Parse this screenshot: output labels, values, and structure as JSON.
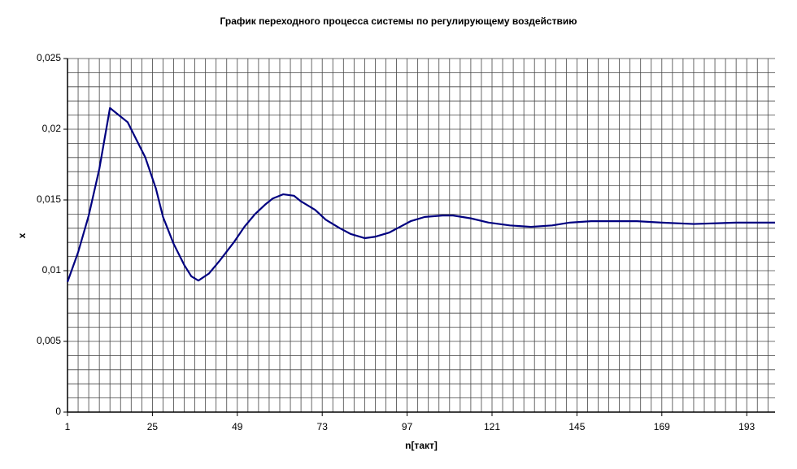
{
  "chart_data": {
    "type": "line",
    "title": "График переходного процесса системы по регулирующему воздействию",
    "xlabel": "n[такт]",
    "ylabel": "x",
    "x": [
      1,
      4,
      7,
      10,
      13,
      15,
      18,
      20,
      23,
      26,
      28,
      31,
      34,
      36,
      38,
      41,
      44,
      48,
      51,
      54,
      57,
      59,
      62,
      65,
      67,
      71,
      74,
      78,
      81,
      85,
      88,
      92,
      95,
      98,
      102,
      107,
      110,
      115,
      120,
      126,
      132,
      138,
      143,
      149,
      155,
      162,
      169,
      178,
      190,
      201
    ],
    "series": [
      {
        "color": "#000080",
        "values": [
          0.0092,
          0.0113,
          0.0139,
          0.0172,
          0.0215,
          0.0211,
          0.0205,
          0.0195,
          0.018,
          0.0158,
          0.0138,
          0.0119,
          0.0104,
          0.0096,
          0.0093,
          0.0098,
          0.0107,
          0.012,
          0.0131,
          0.014,
          0.0147,
          0.0151,
          0.0154,
          0.0153,
          0.0149,
          0.0143,
          0.0136,
          0.013,
          0.0126,
          0.0123,
          0.0124,
          0.0127,
          0.0131,
          0.0135,
          0.0138,
          0.0139,
          0.0139,
          0.0137,
          0.0134,
          0.0132,
          0.0131,
          0.0132,
          0.0134,
          0.0135,
          0.0135,
          0.0135,
          0.0134,
          0.0133,
          0.0134,
          0.0134
        ]
      }
    ],
    "xlim": [
      1,
      201
    ],
    "xticks": [
      1,
      25,
      49,
      73,
      97,
      121,
      145,
      169,
      193
    ],
    "ylim": [
      0,
      0.025
    ],
    "yticks": [
      0,
      {
        "value": 0.005,
        "label": "0,005"
      },
      {
        "value": 0.01,
        "label": "0,01"
      },
      {
        "value": 0.015,
        "label": "0,015"
      },
      {
        "value": 0.02,
        "label": "0,02"
      },
      {
        "value": 0.025,
        "label": "0,025"
      }
    ],
    "xgrid": [
      1,
      4,
      7,
      10,
      13,
      16,
      19,
      22,
      25,
      28,
      31,
      34,
      37,
      40,
      43,
      46,
      49,
      52,
      55,
      58,
      61,
      64,
      67,
      70,
      73,
      76,
      79,
      82,
      85,
      88,
      91,
      94,
      97,
      100,
      103,
      106,
      109,
      112,
      115,
      118,
      121,
      124,
      127,
      130,
      133,
      136,
      139,
      142,
      145,
      148,
      151,
      154,
      157,
      160,
      163,
      166,
      169,
      172,
      175,
      178,
      181,
      184,
      187,
      190,
      193,
      196,
      199
    ],
    "ygrid": [
      0.001,
      0.002,
      0.003,
      0.004,
      0.005,
      0.006,
      0.007,
      0.008,
      0.009,
      0.01,
      0.011,
      0.012,
      0.013,
      0.014,
      0.015,
      0.016,
      0.017,
      0.018,
      0.019,
      0.02,
      0.021,
      0.022,
      0.023,
      0.024,
      0.025
    ]
  }
}
